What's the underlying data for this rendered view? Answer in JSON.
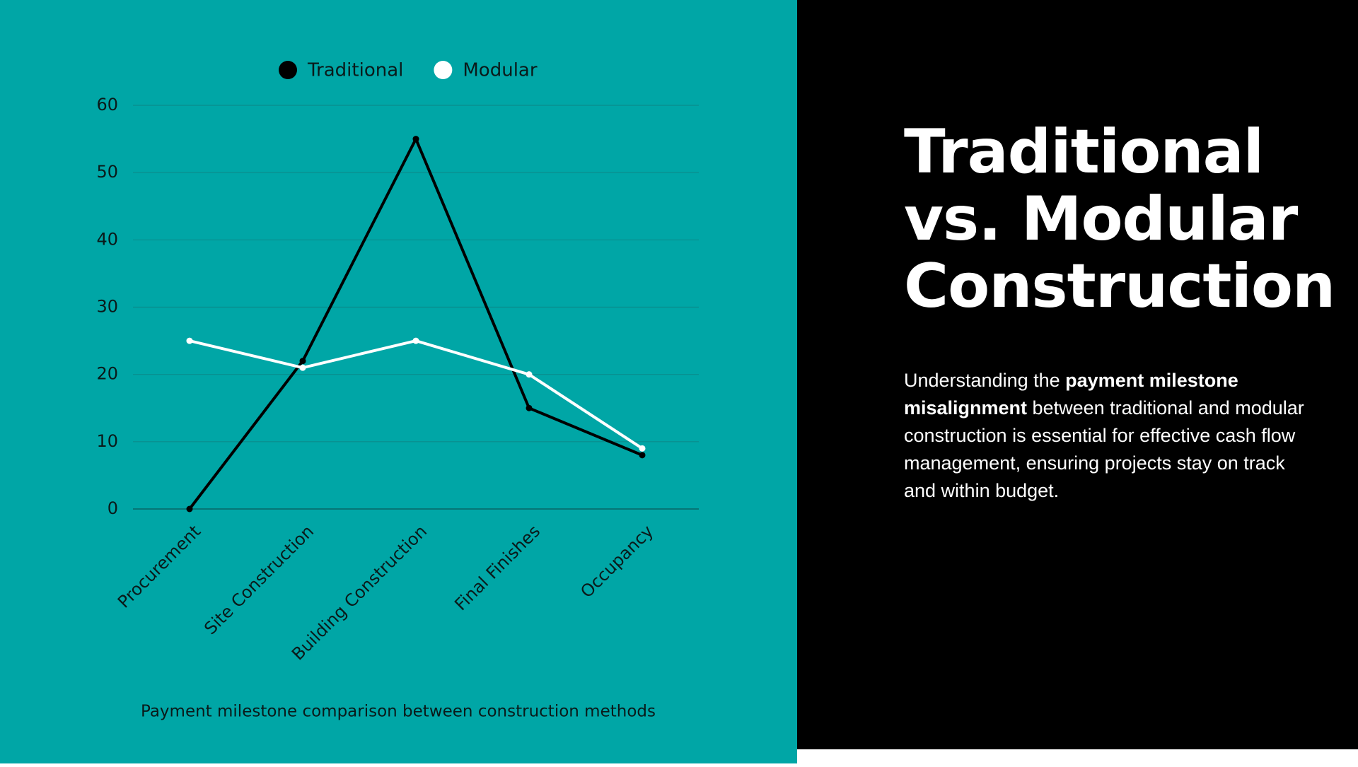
{
  "chart_data": {
    "type": "line",
    "categories": [
      "Procurement",
      "Site Construction",
      "Building Construction",
      "Final Finishes",
      "Occupancy"
    ],
    "series": [
      {
        "name": "Traditional",
        "color": "#000000",
        "values": [
          0,
          22,
          55,
          15,
          8
        ]
      },
      {
        "name": "Modular",
        "color": "#ffffff",
        "values": [
          25,
          21,
          25,
          20,
          9
        ]
      }
    ],
    "ylim": [
      0,
      60
    ],
    "yticks": [
      0,
      10,
      20,
      30,
      40,
      50,
      60
    ],
    "grid": true,
    "legend": "top",
    "caption": "Payment milestone comparison between construction methods"
  },
  "panel": {
    "title_lines": [
      "Traditional",
      "vs. Modular",
      "Construction"
    ],
    "paragraph": {
      "before": "Understanding the ",
      "bold": "payment milestone misalignment",
      "after": " between traditional and modular construction is essential for effective cash flow management, ensuring projects stay on track and within budget."
    }
  }
}
